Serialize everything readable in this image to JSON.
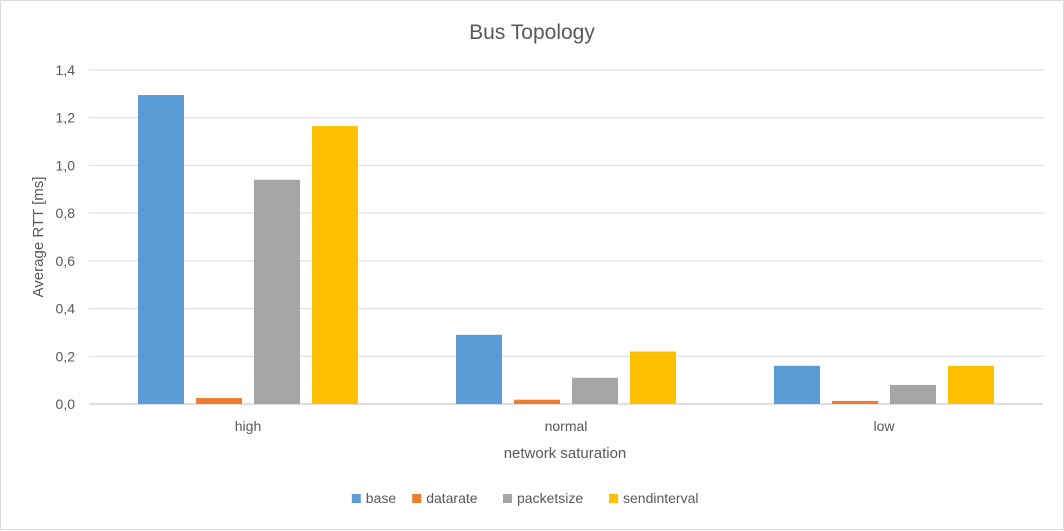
{
  "chart_data": {
    "type": "bar",
    "title": "Bus Topology",
    "xlabel": "network saturation",
    "ylabel": "Average RTT [ms]",
    "categories": [
      "high",
      "normal",
      "low"
    ],
    "y_ticks": [
      "0,0",
      "0,2",
      "0,4",
      "0,6",
      "0,8",
      "1,0",
      "1,2",
      "1,4"
    ],
    "ylim": [
      0,
      1.4
    ],
    "grid": true,
    "legend_position": "bottom",
    "series": [
      {
        "name": "base",
        "color": "#5B9BD5",
        "values": [
          1.295,
          0.29,
          0.16
        ]
      },
      {
        "name": "datarate",
        "color": "#ED7D31",
        "values": [
          0.025,
          0.018,
          0.013
        ]
      },
      {
        "name": "packetsize",
        "color": "#A5A5A5",
        "values": [
          0.94,
          0.11,
          0.08
        ]
      },
      {
        "name": "sendinterval",
        "color": "#FFC000",
        "values": [
          1.165,
          0.22,
          0.16
        ]
      }
    ]
  }
}
